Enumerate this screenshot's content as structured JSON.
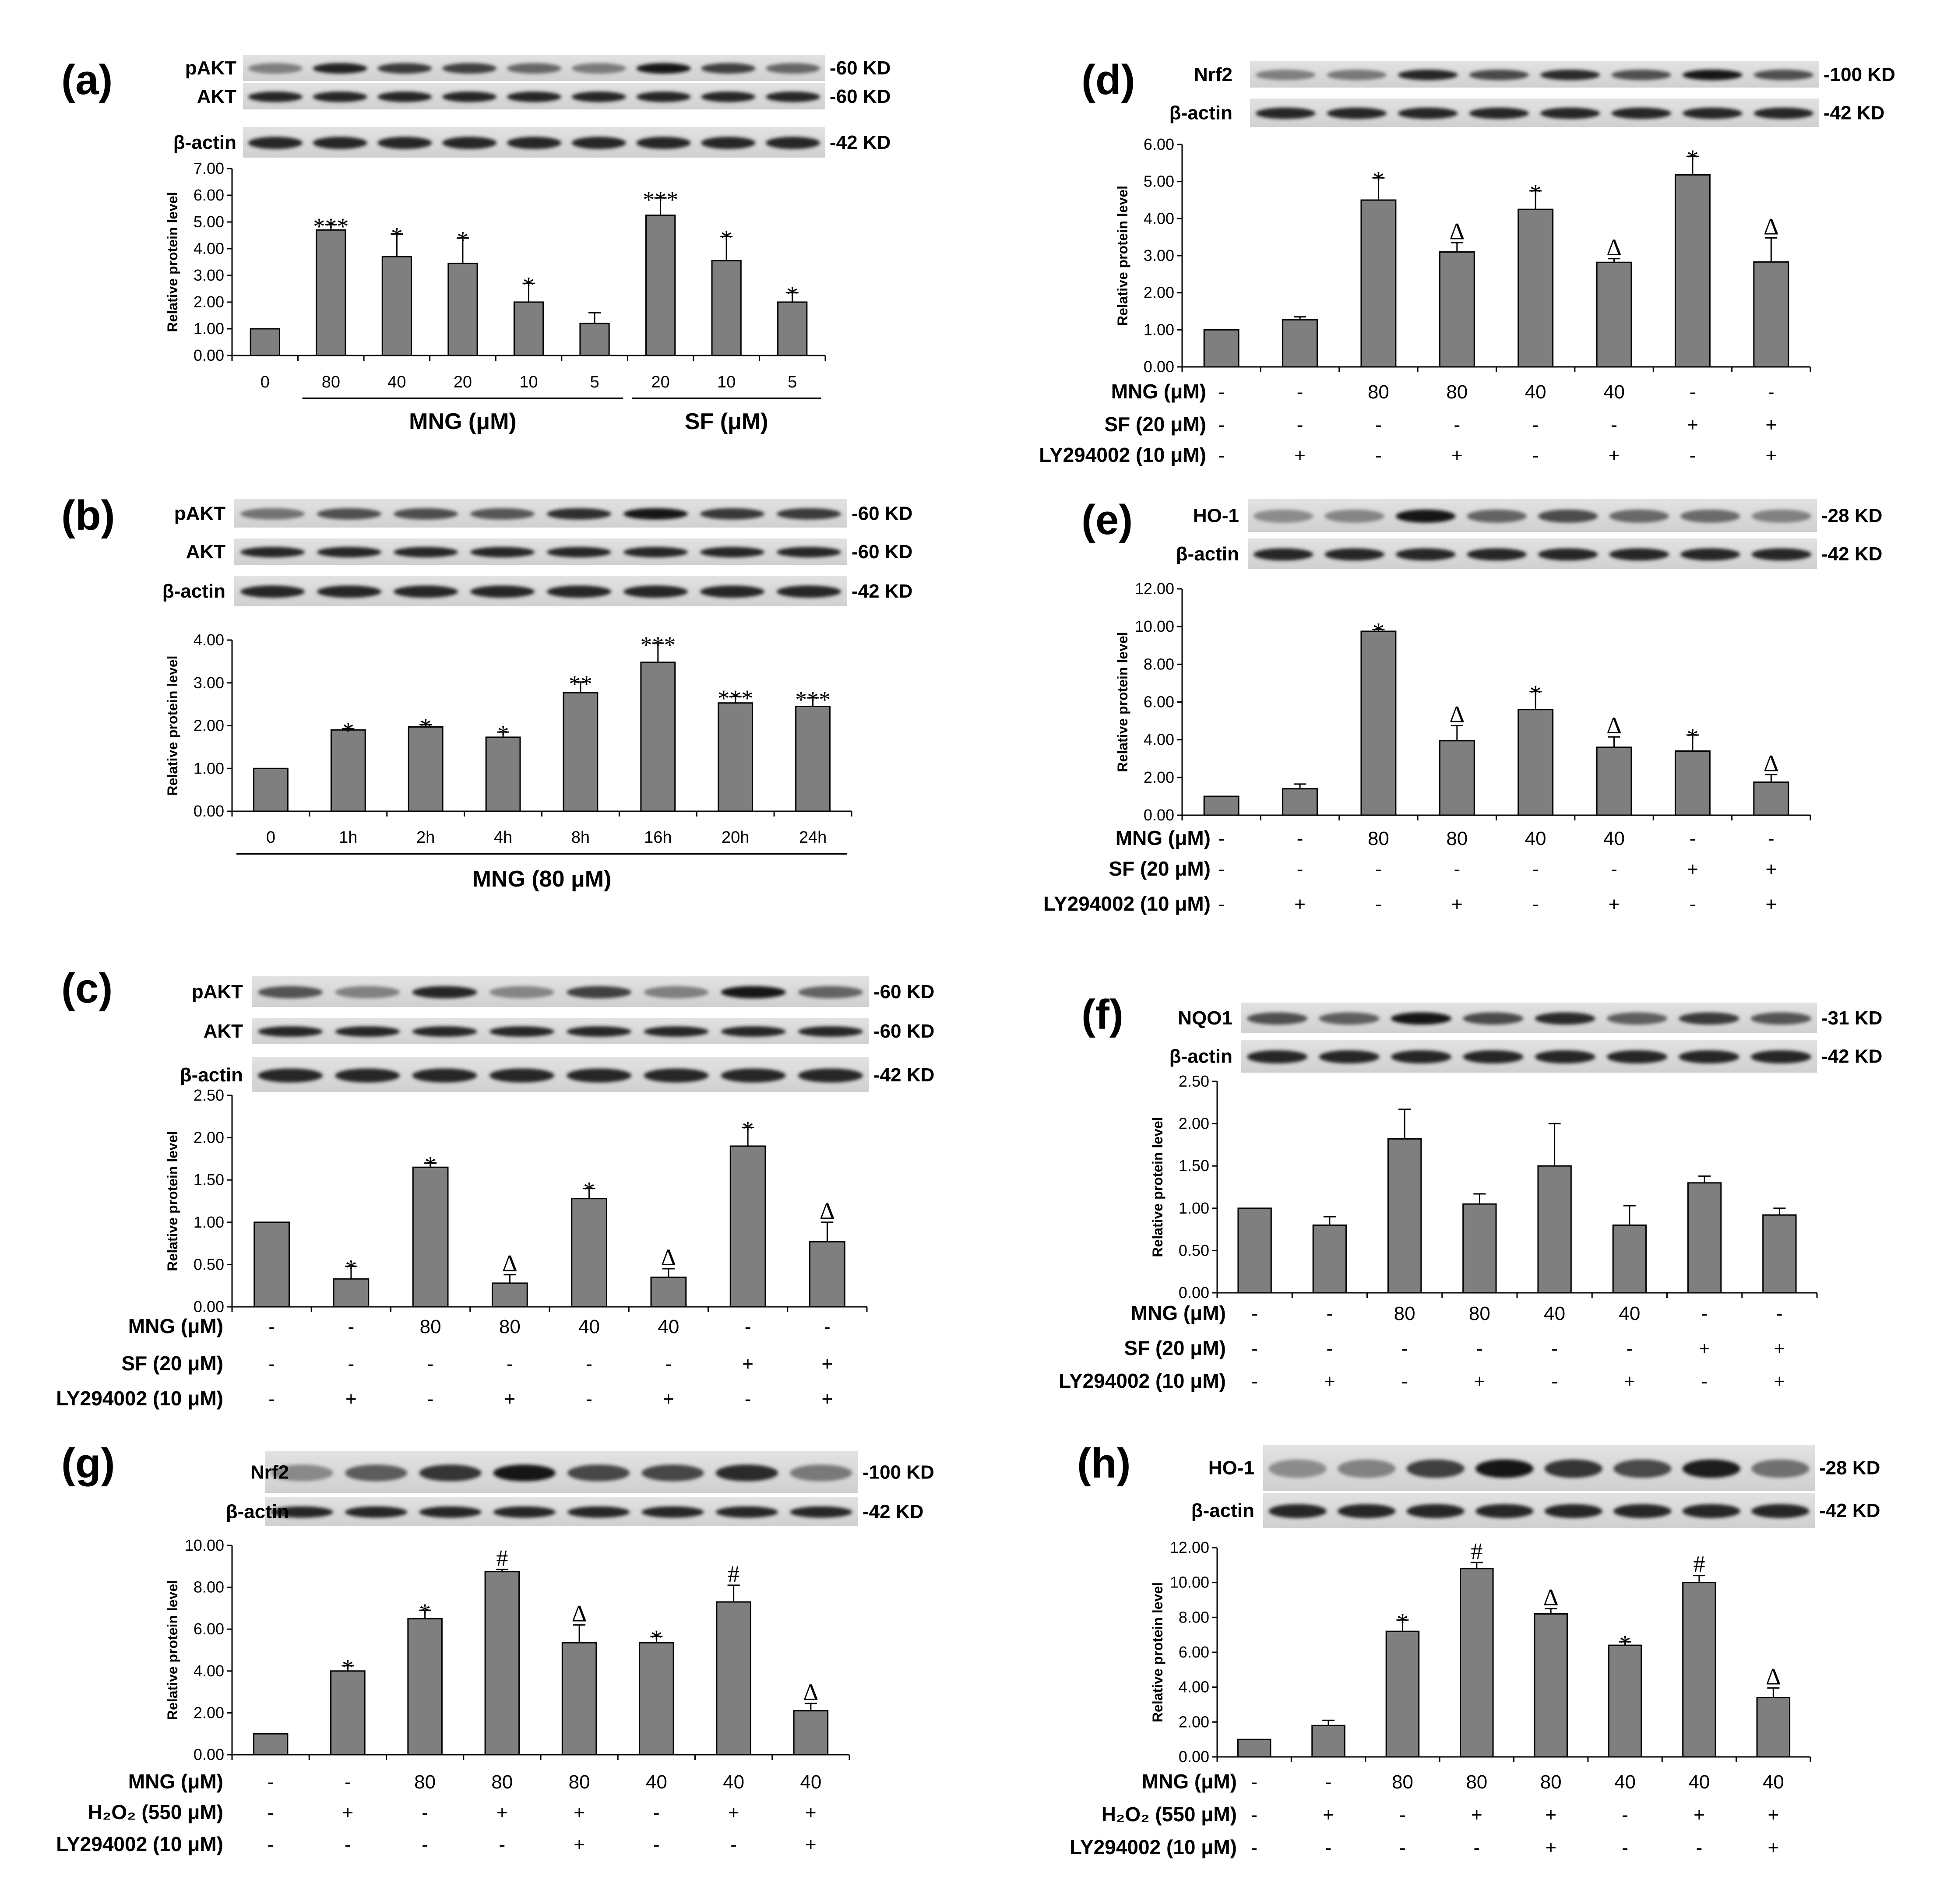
{
  "chart_data": [
    {
      "id": "a",
      "panel_label": "(a)",
      "type": "bar",
      "ylabel": "Relative protein level",
      "ylim": [
        0,
        7
      ],
      "yticks": [
        "0.00",
        "1.00",
        "2.00",
        "3.00",
        "4.00",
        "5.00",
        "6.00",
        "7.00"
      ],
      "categories": [
        "0",
        "80",
        "40",
        "20",
        "10",
        "5",
        "20",
        "10",
        "5"
      ],
      "values": [
        1.0,
        4.7,
        3.7,
        3.45,
        2.0,
        1.2,
        5.25,
        3.55,
        2.0
      ],
      "errors": [
        0,
        0.2,
        0.85,
        0.95,
        0.7,
        0.4,
        0.65,
        0.9,
        0.35
      ],
      "significance": [
        "",
        "***",
        "*",
        "*",
        "*",
        "",
        "***",
        "*",
        "*"
      ],
      "blots": [
        {
          "label": "pAKT",
          "kd": "-60 KD"
        },
        {
          "label": "AKT",
          "kd": "-60 KD"
        },
        {
          "label": "β-actin",
          "kd": "-42 KD"
        }
      ],
      "groups": [
        {
          "label": "MNG  (μM)",
          "from": 1,
          "to": 5
        },
        {
          "label": "SF (μM)",
          "from": 6,
          "to": 8
        }
      ]
    },
    {
      "id": "b",
      "panel_label": "(b)",
      "type": "bar",
      "ylabel": "Relative protein level",
      "ylim": [
        0,
        4
      ],
      "yticks": [
        "0.00",
        "1.00",
        "2.00",
        "3.00",
        "4.00"
      ],
      "categories": [
        "0",
        "1h",
        "2h",
        "4h",
        "8h",
        "16h",
        "20h",
        "24h"
      ],
      "values": [
        1.0,
        1.9,
        1.97,
        1.73,
        2.77,
        3.48,
        2.53,
        2.45
      ],
      "errors": [
        0,
        0.03,
        0.05,
        0.12,
        0.25,
        0.45,
        0.15,
        0.2
      ],
      "significance": [
        "",
        "*",
        "*",
        "*",
        "**",
        "***",
        "***",
        "***"
      ],
      "blots": [
        {
          "label": "pAKT",
          "kd": "-60 KD"
        },
        {
          "label": "AKT",
          "kd": "-60 KD"
        },
        {
          "label": "β-actin",
          "kd": "-42 KD"
        }
      ],
      "groups": [
        {
          "label": "MNG  (80 μM)",
          "from": 0,
          "to": 7
        }
      ]
    },
    {
      "id": "c",
      "panel_label": "(c)",
      "type": "bar",
      "ylabel": "Relative protein level",
      "ylim": [
        0,
        2.5
      ],
      "yticks": [
        "0.00",
        "0.50",
        "1.00",
        "1.50",
        "2.00",
        "2.50"
      ],
      "values": [
        1.0,
        0.33,
        1.65,
        0.28,
        1.28,
        0.35,
        1.9,
        0.77
      ],
      "errors": [
        0,
        0.15,
        0.05,
        0.1,
        0.12,
        0.1,
        0.22,
        0.23
      ],
      "significance": [
        "",
        "*",
        "*",
        "Δ",
        "*",
        "Δ",
        "*",
        "Δ"
      ],
      "blots": [
        {
          "label": "pAKT",
          "kd": "-60 KD"
        },
        {
          "label": "AKT",
          "kd": "-60 KD"
        },
        {
          "label": "β-actin",
          "kd": "-42 KD"
        }
      ],
      "conditions": [
        {
          "label": "MNG (μM)",
          "values": [
            "-",
            "-",
            "80",
            "80",
            "40",
            "40",
            "-",
            "-"
          ]
        },
        {
          "label": "SF (20 μM)",
          "values": [
            "-",
            "-",
            "-",
            "-",
            "-",
            "-",
            "+",
            "+"
          ]
        },
        {
          "label": "LY294002 (10 μM)",
          "values": [
            "-",
            "+",
            "-",
            "+",
            "-",
            "+",
            "-",
            "+"
          ]
        }
      ]
    },
    {
      "id": "d",
      "panel_label": "(d)",
      "type": "bar",
      "ylabel": "Relative protein level",
      "ylim": [
        0,
        6
      ],
      "yticks": [
        "0.00",
        "1.00",
        "2.00",
        "3.00",
        "4.00",
        "5.00",
        "6.00"
      ],
      "values": [
        1.0,
        1.27,
        4.5,
        3.1,
        4.25,
        2.82,
        5.18,
        2.83
      ],
      "errors": [
        0,
        0.08,
        0.6,
        0.25,
        0.5,
        0.1,
        0.5,
        0.65
      ],
      "significance": [
        "",
        "",
        "*",
        "Δ",
        "*",
        "Δ",
        "*",
        "Δ"
      ],
      "blots": [
        {
          "label": "Nrf2",
          "kd": "-100 KD"
        },
        {
          "label": "β-actin",
          "kd": "-42 KD"
        }
      ],
      "conditions": [
        {
          "label": "MNG (μM)",
          "values": [
            "-",
            "-",
            "80",
            "80",
            "40",
            "40",
            "-",
            "-"
          ]
        },
        {
          "label": "SF (20 μM)",
          "values": [
            "-",
            "-",
            "-",
            "-",
            "-",
            "-",
            "+",
            "+"
          ]
        },
        {
          "label": "LY294002 (10 μM)",
          "values": [
            "-",
            "+",
            "-",
            "+",
            "-",
            "+",
            "-",
            "+"
          ]
        }
      ]
    },
    {
      "id": "e",
      "panel_label": "(e)",
      "type": "bar",
      "ylabel": "Relative protein level",
      "ylim": [
        0,
        12
      ],
      "yticks": [
        "0.00",
        "2.00",
        "4.00",
        "6.00",
        "8.00",
        "10.00",
        "12.00"
      ],
      "values": [
        1.0,
        1.4,
        9.75,
        3.95,
        5.6,
        3.6,
        3.4,
        1.75
      ],
      "errors": [
        0,
        0.25,
        0.1,
        0.8,
        0.95,
        0.55,
        0.85,
        0.4
      ],
      "significance": [
        "",
        "",
        "*",
        "Δ",
        "*",
        "Δ",
        "*",
        "Δ"
      ],
      "blots": [
        {
          "label": "HO-1",
          "kd": "-28 KD"
        },
        {
          "label": "β-actin",
          "kd": "-42 KD"
        }
      ],
      "conditions": [
        {
          "label": "MNG (μM)",
          "values": [
            "-",
            "-",
            "80",
            "80",
            "40",
            "40",
            "-",
            "-"
          ]
        },
        {
          "label": "SF (20 μM)",
          "values": [
            "-",
            "-",
            "-",
            "-",
            "-",
            "-",
            "+",
            "+"
          ]
        },
        {
          "label": "LY294002 (10 μM)",
          "values": [
            "-",
            "+",
            "-",
            "+",
            "-",
            "+",
            "-",
            "+"
          ]
        }
      ]
    },
    {
      "id": "f",
      "panel_label": "(f)",
      "type": "bar",
      "ylabel": "Relative protein level",
      "ylim": [
        0,
        2.5
      ],
      "yticks": [
        "0.00",
        "0.50",
        "1.00",
        "1.50",
        "2.00",
        "2.50"
      ],
      "values": [
        1.0,
        0.8,
        1.82,
        1.05,
        1.5,
        0.8,
        1.3,
        0.92
      ],
      "errors": [
        0,
        0.1,
        0.35,
        0.12,
        0.5,
        0.23,
        0.08,
        0.08
      ],
      "significance": [
        "",
        "",
        "",
        "",
        "",
        "",
        "",
        ""
      ],
      "blots": [
        {
          "label": "NQO1",
          "kd": "-31 KD"
        },
        {
          "label": "β-actin",
          "kd": "-42 KD"
        }
      ],
      "conditions": [
        {
          "label": "MNG (μM)",
          "values": [
            "-",
            "-",
            "80",
            "80",
            "40",
            "40",
            "-",
            "-"
          ]
        },
        {
          "label": "SF (20 μM)",
          "values": [
            "-",
            "-",
            "-",
            "-",
            "-",
            "-",
            "+",
            "+"
          ]
        },
        {
          "label": "LY294002 (10 μM)",
          "values": [
            "-",
            "+",
            "-",
            "+",
            "-",
            "+",
            "-",
            "+"
          ]
        }
      ]
    },
    {
      "id": "g",
      "panel_label": "(g)",
      "type": "bar",
      "ylabel": "Relative protein level",
      "ylim": [
        0,
        10
      ],
      "yticks": [
        "0.00",
        "2.00",
        "4.00",
        "6.00",
        "8.00",
        "10.00"
      ],
      "values": [
        1.0,
        4.0,
        6.5,
        8.75,
        5.35,
        5.35,
        7.3,
        2.1
      ],
      "errors": [
        0,
        0.25,
        0.4,
        0.1,
        0.85,
        0.3,
        0.8,
        0.35
      ],
      "significance": [
        "",
        "*",
        "*",
        "#",
        "Δ",
        "*",
        "#",
        "Δ"
      ],
      "blots": [
        {
          "label": "Nrf2",
          "kd": "-100 KD"
        },
        {
          "label": "β-actin",
          "kd": "-42 KD"
        }
      ],
      "conditions": [
        {
          "label": "MNG (μM)",
          "values": [
            "-",
            "-",
            "80",
            "80",
            "80",
            "40",
            "40",
            "40"
          ]
        },
        {
          "label": "H₂O₂ (550 μM)",
          "values": [
            "-",
            "+",
            "-",
            "+",
            "+",
            "-",
            "+",
            "+"
          ]
        },
        {
          "label": "LY294002 (10 μM)",
          "values": [
            "-",
            "-",
            "-",
            "-",
            "+",
            "-",
            "-",
            "+"
          ]
        }
      ]
    },
    {
      "id": "h",
      "panel_label": "(h)",
      "type": "bar",
      "ylabel": "Relative protein level",
      "ylim": [
        0,
        12
      ],
      "yticks": [
        "0.00",
        "2.00",
        "4.00",
        "6.00",
        "8.00",
        "10.00",
        "12.00"
      ],
      "values": [
        1.0,
        1.8,
        7.2,
        10.8,
        8.2,
        6.4,
        10.0,
        3.4
      ],
      "errors": [
        0,
        0.3,
        0.65,
        0.35,
        0.3,
        0.2,
        0.4,
        0.55
      ],
      "significance": [
        "",
        "",
        "*",
        "#",
        "Δ",
        "*",
        "#",
        "Δ"
      ],
      "blots": [
        {
          "label": "HO-1",
          "kd": "-28 KD"
        },
        {
          "label": "β-actin",
          "kd": "-42 KD"
        }
      ],
      "conditions": [
        {
          "label": "MNG (μM)",
          "values": [
            "-",
            "-",
            "80",
            "80",
            "80",
            "40",
            "40",
            "40"
          ]
        },
        {
          "label": "H₂O₂ (550 μM)",
          "values": [
            "-",
            "+",
            "-",
            "+",
            "+",
            "-",
            "+",
            "+"
          ]
        },
        {
          "label": "LY294002 (10 μM)",
          "values": [
            "-",
            "-",
            "-",
            "-",
            "+",
            "-",
            "-",
            "+"
          ]
        }
      ]
    }
  ]
}
